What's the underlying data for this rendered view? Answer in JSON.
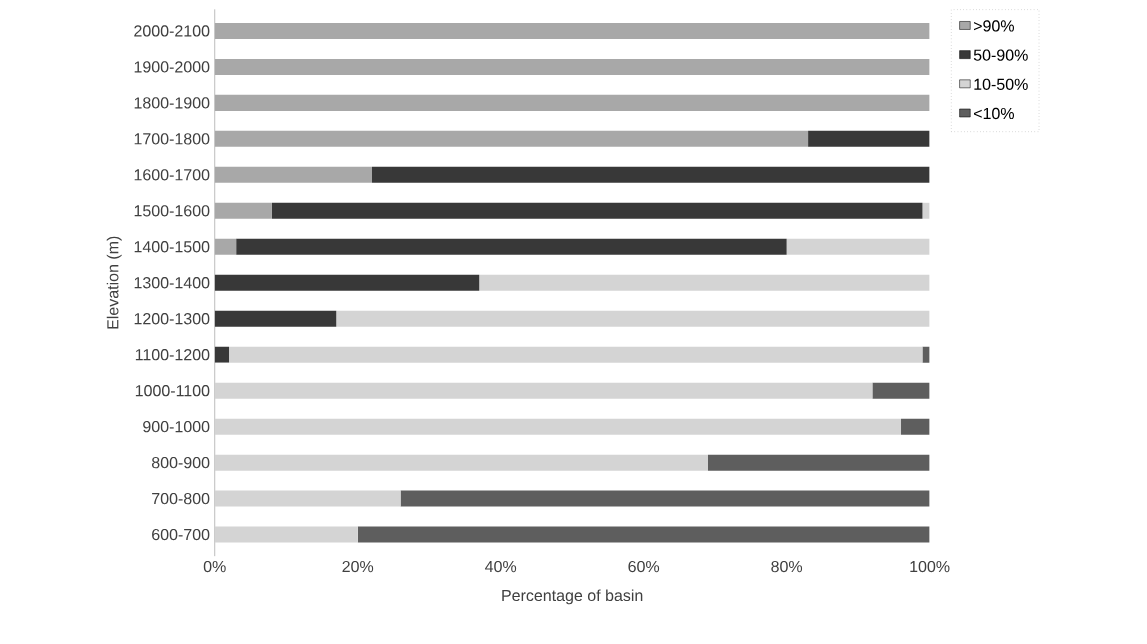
{
  "chart_data": {
    "type": "bar",
    "orientation": "horizontal",
    "stacked": true,
    "xlabel": "Percentage of basin",
    "ylabel": "Elevation (m)",
    "categories": [
      "2000-2100",
      "1900-2000",
      "1800-1900",
      "1700-1800",
      "1600-1700",
      "1500-1600",
      "1400-1500",
      "1300-1400",
      "1200-1300",
      "1100-1200",
      "1000-1100",
      "900-1000",
      "800-900",
      "700-800",
      "600-700"
    ],
    "series": [
      {
        "name": ">90%",
        "color": "#a8a8a8",
        "values": [
          100,
          100,
          100,
          83,
          22,
          8,
          3,
          0,
          0,
          0,
          0,
          0,
          0,
          0,
          0
        ]
      },
      {
        "name": "50-90%",
        "color": "#383838",
        "values": [
          0,
          0,
          0,
          17,
          78,
          91,
          77,
          37,
          17,
          2,
          0,
          0,
          0,
          0,
          0
        ]
      },
      {
        "name": "10-50%",
        "color": "#d4d4d4",
        "values": [
          0,
          0,
          0,
          0,
          0,
          1,
          20,
          63,
          83,
          97,
          92,
          96,
          69,
          26,
          20
        ]
      },
      {
        "name": "<10%",
        "color": "#5e5e5e",
        "values": [
          0,
          0,
          0,
          0,
          0,
          0,
          0,
          0,
          0,
          1,
          8,
          4,
          31,
          74,
          80
        ]
      }
    ],
    "xlim": [
      0,
      100
    ],
    "xticks": [
      {
        "value": 0,
        "label": "0%"
      },
      {
        "value": 20,
        "label": "20%"
      },
      {
        "value": 40,
        "label": "40%"
      },
      {
        "value": 60,
        "label": "60%"
      },
      {
        "value": 80,
        "label": "80%"
      },
      {
        "value": 100,
        "label": "100%"
      }
    ],
    "legend": "right"
  }
}
